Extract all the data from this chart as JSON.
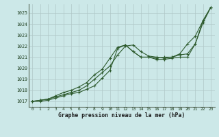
{
  "title": "Graphe pression niveau de la mer (hPa)",
  "background_color": "#cce8e8",
  "plot_bg_color": "#cce8e8",
  "grid_color": "#b0c8c8",
  "line_color": "#2d5a2d",
  "xlim": [
    -0.5,
    23.5
  ],
  "ylim": [
    1016.5,
    1025.8
  ],
  "xticks": [
    0,
    1,
    2,
    3,
    4,
    5,
    6,
    7,
    8,
    9,
    10,
    11,
    12,
    13,
    14,
    15,
    16,
    17,
    18,
    19,
    20,
    21,
    22,
    23
  ],
  "yticks": [
    1017,
    1018,
    1019,
    1020,
    1021,
    1022,
    1023,
    1024,
    1025
  ],
  "series": [
    [
      1017.0,
      1017.0,
      1017.1,
      1017.3,
      1017.5,
      1017.7,
      1017.8,
      1018.1,
      1018.4,
      1019.1,
      1019.8,
      1021.8,
      1022.1,
      1021.5,
      1021.0,
      1021.0,
      1020.8,
      1020.8,
      1020.9,
      1021.0,
      1021.0,
      1022.2,
      1024.1,
      1025.5
    ],
    [
      1017.0,
      1017.1,
      1017.2,
      1017.4,
      1017.6,
      1017.8,
      1018.0,
      1018.4,
      1019.0,
      1019.6,
      1020.2,
      1021.2,
      1022.0,
      1022.1,
      1021.5,
      1021.1,
      1021.0,
      1020.9,
      1021.0,
      1021.2,
      1021.3,
      1022.2,
      1024.3,
      1025.5
    ],
    [
      1017.0,
      1017.1,
      1017.2,
      1017.5,
      1017.8,
      1018.0,
      1018.3,
      1018.7,
      1019.4,
      1019.9,
      1020.9,
      1021.9,
      1022.1,
      1021.5,
      1021.0,
      1021.0,
      1020.9,
      1021.0,
      1021.0,
      1021.3,
      1022.2,
      1022.9,
      1024.3,
      1025.5
    ]
  ]
}
